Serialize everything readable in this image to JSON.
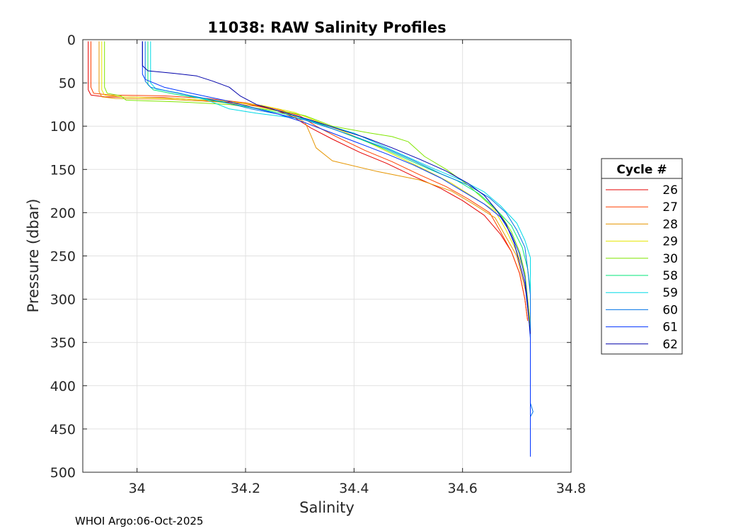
{
  "chart_data": {
    "type": "line",
    "title": "11038: RAW Salinity Profiles",
    "xlabel": "Salinity",
    "ylabel": "Pressure (dbar)",
    "xlim": [
      33.9,
      34.8
    ],
    "ylim": [
      0,
      500
    ],
    "y_reversed": true,
    "grid": true,
    "x_ticks": [
      34,
      34.2,
      34.4,
      34.6,
      34.8
    ],
    "x_tick_labels": [
      "34",
      "34.2",
      "34.4",
      "34.6",
      "34.8"
    ],
    "y_ticks": [
      0,
      50,
      100,
      150,
      200,
      250,
      300,
      350,
      400,
      450,
      500
    ],
    "y_tick_labels": [
      "0",
      "50",
      "100",
      "150",
      "200",
      "250",
      "300",
      "350",
      "400",
      "450",
      "500"
    ],
    "legend_title": "Cycle #",
    "legend_position": "right",
    "series": [
      {
        "name": "26",
        "color": "#e60000",
        "points": [
          [
            33.91,
            2
          ],
          [
            33.91,
            58
          ],
          [
            33.915,
            64
          ],
          [
            33.94,
            66
          ],
          [
            34.05,
            67
          ],
          [
            34.12,
            70
          ],
          [
            34.2,
            74
          ],
          [
            34.25,
            80
          ],
          [
            34.29,
            90
          ],
          [
            34.32,
            102
          ],
          [
            34.36,
            115
          ],
          [
            34.41,
            130
          ],
          [
            34.46,
            143
          ],
          [
            34.51,
            158
          ],
          [
            34.56,
            172
          ],
          [
            34.6,
            186
          ],
          [
            34.64,
            203
          ],
          [
            34.67,
            225
          ],
          [
            34.69,
            245
          ],
          [
            34.705,
            270
          ],
          [
            34.715,
            300
          ],
          [
            34.72,
            325
          ]
        ]
      },
      {
        "name": "27",
        "color": "#ff4000",
        "points": [
          [
            33.915,
            2
          ],
          [
            33.915,
            55
          ],
          [
            33.92,
            62
          ],
          [
            33.95,
            64
          ],
          [
            34.05,
            65
          ],
          [
            34.13,
            68
          ],
          [
            34.2,
            73
          ],
          [
            34.25,
            79
          ],
          [
            34.3,
            88
          ],
          [
            34.33,
            100
          ],
          [
            34.37,
            113
          ],
          [
            34.42,
            128
          ],
          [
            34.47,
            141
          ],
          [
            34.52,
            156
          ],
          [
            34.57,
            170
          ],
          [
            34.61,
            184
          ],
          [
            34.65,
            200
          ],
          [
            34.67,
            222
          ],
          [
            34.69,
            245
          ],
          [
            34.705,
            270
          ],
          [
            34.715,
            300
          ],
          [
            34.72,
            325
          ]
        ]
      },
      {
        "name": "28",
        "color": "#e69500",
        "points": [
          [
            33.93,
            2
          ],
          [
            33.93,
            60
          ],
          [
            33.935,
            66
          ],
          [
            33.96,
            68
          ],
          [
            34.06,
            69
          ],
          [
            34.15,
            72
          ],
          [
            34.22,
            77
          ],
          [
            34.28,
            85
          ],
          [
            34.31,
            96
          ],
          [
            34.32,
            110
          ],
          [
            34.33,
            125
          ],
          [
            34.36,
            140
          ],
          [
            34.44,
            152
          ],
          [
            34.52,
            162
          ],
          [
            34.58,
            175
          ],
          [
            34.62,
            190
          ],
          [
            34.66,
            206
          ],
          [
            34.68,
            228
          ],
          [
            34.7,
            250
          ],
          [
            34.71,
            275
          ],
          [
            34.72,
            300
          ],
          [
            34.725,
            330
          ]
        ]
      },
      {
        "name": "29",
        "color": "#e6e600",
        "points": [
          [
            33.935,
            2
          ],
          [
            33.935,
            58
          ],
          [
            33.94,
            64
          ],
          [
            33.97,
            66
          ],
          [
            34.07,
            68
          ],
          [
            34.16,
            71
          ],
          [
            34.23,
            76
          ],
          [
            34.29,
            84
          ],
          [
            34.33,
            94
          ],
          [
            34.38,
            106
          ],
          [
            34.43,
            120
          ],
          [
            34.48,
            135
          ],
          [
            34.53,
            150
          ],
          [
            34.58,
            166
          ],
          [
            34.62,
            182
          ],
          [
            34.66,
            198
          ],
          [
            34.68,
            220
          ],
          [
            34.7,
            245
          ],
          [
            34.715,
            270
          ],
          [
            34.72,
            300
          ],
          [
            34.725,
            330
          ],
          [
            34.725,
            368
          ]
        ]
      },
      {
        "name": "30",
        "color": "#80e600",
        "points": [
          [
            33.94,
            2
          ],
          [
            33.94,
            55
          ],
          [
            33.945,
            62
          ],
          [
            33.97,
            65
          ],
          [
            33.98,
            70
          ],
          [
            34.08,
            72
          ],
          [
            34.17,
            75
          ],
          [
            34.23,
            80
          ],
          [
            34.28,
            84
          ],
          [
            34.31,
            88
          ],
          [
            34.36,
            100
          ],
          [
            34.43,
            108
          ],
          [
            34.47,
            112
          ],
          [
            34.5,
            118
          ],
          [
            34.53,
            135
          ],
          [
            34.57,
            150
          ],
          [
            34.61,
            168
          ],
          [
            34.64,
            185
          ],
          [
            34.67,
            202
          ],
          [
            34.69,
            222
          ],
          [
            34.705,
            245
          ],
          [
            34.715,
            270
          ],
          [
            34.72,
            300
          ],
          [
            34.725,
            340
          ],
          [
            34.725,
            372
          ]
        ]
      },
      {
        "name": "58",
        "color": "#00e67a",
        "points": [
          [
            34.02,
            2
          ],
          [
            34.02,
            52
          ],
          [
            34.03,
            58
          ],
          [
            34.07,
            63
          ],
          [
            34.12,
            68
          ],
          [
            34.18,
            75
          ],
          [
            34.24,
            82
          ],
          [
            34.29,
            88
          ],
          [
            34.34,
            98
          ],
          [
            34.39,
            110
          ],
          [
            34.44,
            122
          ],
          [
            34.49,
            136
          ],
          [
            34.54,
            150
          ],
          [
            34.59,
            163
          ],
          [
            34.63,
            178
          ],
          [
            34.66,
            195
          ],
          [
            34.69,
            215
          ],
          [
            34.71,
            240
          ],
          [
            34.72,
            265
          ],
          [
            34.725,
            290
          ],
          [
            34.725,
            325
          ],
          [
            34.725,
            365
          ]
        ]
      },
      {
        "name": "59",
        "color": "#00d9e6",
        "points": [
          [
            34.025,
            2
          ],
          [
            34.025,
            50
          ],
          [
            34.035,
            57
          ],
          [
            34.08,
            62
          ],
          [
            34.13,
            70
          ],
          [
            34.17,
            80
          ],
          [
            34.22,
            85
          ],
          [
            34.27,
            89
          ],
          [
            34.31,
            92
          ],
          [
            34.35,
            99
          ],
          [
            34.4,
            108
          ],
          [
            34.45,
            122
          ],
          [
            34.5,
            136
          ],
          [
            34.55,
            150
          ],
          [
            34.6,
            163
          ],
          [
            34.64,
            176
          ],
          [
            34.67,
            192
          ],
          [
            34.7,
            212
          ],
          [
            34.715,
            232
          ],
          [
            34.725,
            252
          ],
          [
            34.725,
            280
          ],
          [
            34.725,
            320
          ]
        ]
      },
      {
        "name": "60",
        "color": "#0073e6",
        "points": [
          [
            34.015,
            2
          ],
          [
            34.015,
            48
          ],
          [
            34.025,
            55
          ],
          [
            34.06,
            60
          ],
          [
            34.11,
            66
          ],
          [
            34.16,
            72
          ],
          [
            34.21,
            80
          ],
          [
            34.26,
            86
          ],
          [
            34.31,
            93
          ],
          [
            34.36,
            103
          ],
          [
            34.41,
            114
          ],
          [
            34.46,
            126
          ],
          [
            34.51,
            140
          ],
          [
            34.56,
            155
          ],
          [
            34.61,
            168
          ],
          [
            34.65,
            183
          ],
          [
            34.68,
            200
          ],
          [
            34.7,
            220
          ],
          [
            34.715,
            240
          ],
          [
            34.72,
            265
          ],
          [
            34.725,
            295
          ],
          [
            34.725,
            335
          ],
          [
            34.725,
            380
          ],
          [
            34.725,
            420
          ],
          [
            34.73,
            430
          ],
          [
            34.725,
            436
          ],
          [
            34.725,
            440
          ]
        ]
      },
      {
        "name": "61",
        "color": "#0033ff",
        "points": [
          [
            34.01,
            2
          ],
          [
            34.01,
            40
          ],
          [
            34.015,
            46
          ],
          [
            34.05,
            55
          ],
          [
            34.1,
            62
          ],
          [
            34.16,
            70
          ],
          [
            34.21,
            78
          ],
          [
            34.26,
            86
          ],
          [
            34.31,
            96
          ],
          [
            34.36,
            108
          ],
          [
            34.41,
            120
          ],
          [
            34.46,
            132
          ],
          [
            34.51,
            145
          ],
          [
            34.56,
            160
          ],
          [
            34.6,
            175
          ],
          [
            34.64,
            190
          ],
          [
            34.67,
            205
          ],
          [
            34.69,
            225
          ],
          [
            34.705,
            248
          ],
          [
            34.715,
            275
          ],
          [
            34.72,
            305
          ],
          [
            34.725,
            345
          ],
          [
            34.725,
            400
          ],
          [
            34.725,
            440
          ],
          [
            34.725,
            482
          ]
        ]
      },
      {
        "name": "62",
        "color": "#0000aa",
        "points": [
          [
            34.01,
            2
          ],
          [
            34.01,
            30
          ],
          [
            34.02,
            36
          ],
          [
            34.07,
            39
          ],
          [
            34.11,
            42
          ],
          [
            34.14,
            48
          ],
          [
            34.17,
            55
          ],
          [
            34.19,
            65
          ],
          [
            34.22,
            75
          ],
          [
            34.27,
            84
          ],
          [
            34.32,
            93
          ],
          [
            34.37,
            103
          ],
          [
            34.42,
            113
          ],
          [
            34.47,
            125
          ],
          [
            34.52,
            138
          ],
          [
            34.57,
            152
          ],
          [
            34.61,
            166
          ],
          [
            34.64,
            180
          ],
          [
            34.66,
            195
          ],
          [
            34.68,
            213
          ],
          [
            34.695,
            235
          ],
          [
            34.705,
            258
          ],
          [
            34.715,
            282
          ],
          [
            34.72,
            310
          ],
          [
            34.725,
            340
          ]
        ]
      }
    ]
  },
  "footer": "WHOI Argo:06-Oct-2025"
}
